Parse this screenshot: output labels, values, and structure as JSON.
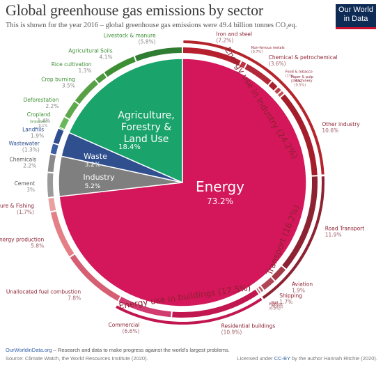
{
  "header": {
    "title": "Global greenhouse gas emissions by sector",
    "subtitle": "This is shown for the year 2016 – global greenhouse gas emissions were 49.4 billion tonnes CO₂eq.",
    "logo_line1": "Our World",
    "logo_line2": "in Data"
  },
  "footer": {
    "site": "OurWorldinData.org",
    "tagline": " – Research and data to make progress against the world's largest problems.",
    "source": "Source: Climate Watch, the World Resources Institute (2020).",
    "license_prefix": "Licensed under ",
    "license": "CC-BY",
    "license_suffix": " by the author Hannah Ritchie (2020)."
  },
  "colors": {
    "energy": "#d4165a",
    "agriculture": "#1aa36b",
    "waste": "#2f4f8f",
    "industry": "#7f7f7f",
    "industry_energy": "#b5242b",
    "transport": "#8c2232",
    "buildings": "#c1164f",
    "other_energy": "#e58e8e"
  },
  "chart_data": {
    "type": "pie",
    "unit": "% of global greenhouse gas emissions",
    "year": 2016,
    "total": "49.4 billion tonnes CO₂eq",
    "sectors": [
      {
        "name": "Energy",
        "value": 73.2,
        "label": "Energy",
        "pct": "73.2%",
        "color": "#d4165a"
      },
      {
        "name": "Industry",
        "value": 5.2,
        "label": "Industry",
        "pct": "5.2%",
        "color": "#7f7f7f"
      },
      {
        "name": "Waste",
        "value": 3.2,
        "label": "Waste",
        "pct": "3.2%",
        "color": "#2f4f8f"
      },
      {
        "name": "Agriculture, Forestry & Land Use",
        "value": 18.4,
        "label_lines": [
          "Agriculture,",
          "Forestry &",
          "Land Use"
        ],
        "pct": "18.4%",
        "color": "#1aa36b"
      }
    ],
    "subsectors_energy": [
      {
        "name": "Iron and steel",
        "value": 7.2,
        "pct": "(7.2%)"
      },
      {
        "name": "Non-ferrous metals",
        "value": 0.7,
        "pct": "(0.7%)"
      },
      {
        "name": "Chemical & petrochemical",
        "value": 3.6,
        "pct": "(3.6%)"
      },
      {
        "name": "Food & tobacco",
        "value": 1.0,
        "pct": "(1%)"
      },
      {
        "name": "Paper & pulp",
        "value": 0.6,
        "pct": "(0.6%)"
      },
      {
        "name": "Machinery",
        "value": 0.5,
        "pct": "(0.5%)"
      },
      {
        "name": "Other industry",
        "value": 10.6,
        "pct": "10.6%"
      },
      {
        "name": "Road Transport",
        "value": 11.9,
        "pct": "11.9%"
      },
      {
        "name": "Aviation",
        "value": 1.9,
        "pct": "1.9%"
      },
      {
        "name": "Shipping",
        "value": 1.7,
        "pct": "1.7%"
      },
      {
        "name": "Rail",
        "value": 0.4,
        "pct": "(0.4%)"
      },
      {
        "name": "Pipeline",
        "value": 0.3,
        "pct": "(0.3%)"
      },
      {
        "name": "Residential buildings",
        "value": 10.9,
        "pct": "(10.9%)"
      },
      {
        "name": "Commercial",
        "value": 6.6,
        "pct": "(6.6%)"
      },
      {
        "name": "Unallocated fuel combustion",
        "value": 7.8,
        "pct": "7.8%"
      },
      {
        "name": "Fugitive emissions from energy production",
        "value": 5.8,
        "pct": "5.8%"
      },
      {
        "name": "Energy in Agriculture & Fishing",
        "value": 1.7,
        "pct": "(1.7%)"
      }
    ],
    "subsectors_other": [
      {
        "name": "Cement",
        "value": 3.0,
        "pct": "3%"
      },
      {
        "name": "Chemicals",
        "value": 2.2,
        "pct": "2.2%"
      },
      {
        "name": "Wastewater",
        "value": 1.3,
        "pct": "(1.3%)"
      },
      {
        "name": "Landfills",
        "value": 1.9,
        "pct": "1.9%"
      },
      {
        "name": "Grassland",
        "value": 0.1,
        "pct": "0.1%"
      },
      {
        "name": "Cropland",
        "value": 1.4,
        "pct": "1.4%"
      },
      {
        "name": "Deforestation",
        "value": 2.2,
        "pct": "2.2%"
      },
      {
        "name": "Crop burning",
        "value": 3.5,
        "pct": "3.5%"
      },
      {
        "name": "Rice cultivation",
        "value": 1.3,
        "pct": "1.3%"
      },
      {
        "name": "Agricultural Soils",
        "value": 4.1,
        "pct": "4.1%"
      },
      {
        "name": "Livestock & manure",
        "value": 5.8,
        "pct": "(5.8%)"
      }
    ],
    "groups": [
      {
        "name": "Energy use in Industry",
        "value": 24.2,
        "pct": "(24.2%)"
      },
      {
        "name": "Transport",
        "value": 16.2,
        "pct": "(16.2%)"
      },
      {
        "name": "Energy use in buildings",
        "value": 17.5,
        "pct": "(17.5%)"
      }
    ]
  }
}
